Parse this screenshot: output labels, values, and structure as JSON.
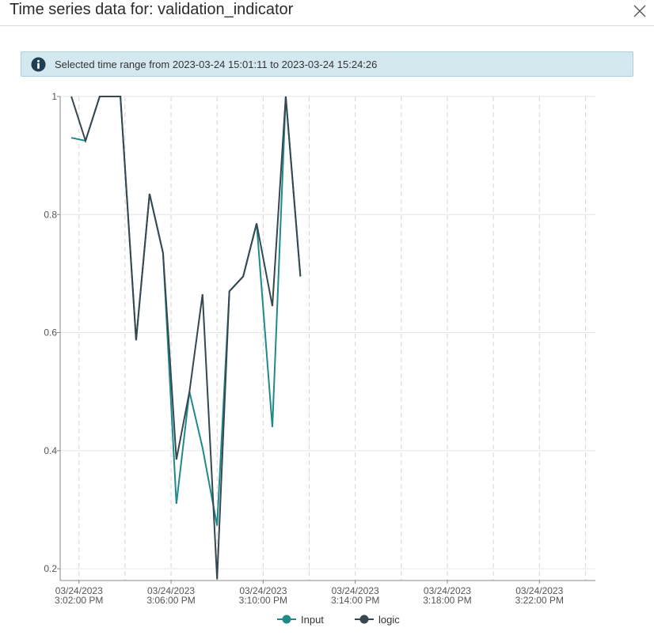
{
  "dialog": {
    "title": "Time series data for: validation_indicator",
    "close_icon": "close-icon"
  },
  "info_banner": {
    "icon": "info-icon",
    "text": "Selected time range from 2023-03-24 15:01:11 to 2023-03-24 15:24:26"
  },
  "chart_data": {
    "type": "line",
    "x_axis": {
      "ticks": [
        {
          "value": "2023-03-24T15:02:00",
          "line1": "03/24/2023",
          "line2": "3:02:00 PM"
        },
        {
          "value": "2023-03-24T15:06:00",
          "line1": "03/24/2023",
          "line2": "3:06:00 PM"
        },
        {
          "value": "2023-03-24T15:10:00",
          "line1": "03/24/2023",
          "line2": "3:10:00 PM"
        },
        {
          "value": "2023-03-24T15:14:00",
          "line1": "03/24/2023",
          "line2": "3:14:00 PM"
        },
        {
          "value": "2023-03-24T15:18:00",
          "line1": "03/24/2023",
          "line2": "3:18:00 PM"
        },
        {
          "value": "2023-03-24T15:22:00",
          "line1": "03/24/2023",
          "line2": "3:22:00 PM"
        }
      ],
      "range": [
        "2023-03-24T15:01:11",
        "2023-03-24T15:24:26"
      ]
    },
    "y_axis": {
      "ticks": [
        {
          "value": 1,
          "label": "1"
        },
        {
          "value": 0.8,
          "label": "0.8"
        },
        {
          "value": 0.6,
          "label": "0.6"
        },
        {
          "value": 0.4,
          "label": "0.4"
        },
        {
          "value": 0.2,
          "label": "0.2"
        }
      ],
      "range": [
        0.18,
        1.0
      ]
    },
    "grid": true,
    "legend_position": "bottom-center",
    "series": [
      {
        "name": "Input",
        "color": "#1f8a8a",
        "points": [
          [
            "2023-03-24T15:01:40",
            0.93
          ],
          [
            "2023-03-24T15:02:17",
            0.925
          ],
          [
            "2023-03-24T15:02:54",
            1.0
          ],
          [
            "2023-03-24T15:03:48",
            1.0
          ],
          [
            "2023-03-24T15:04:29",
            0.587
          ],
          [
            "2023-03-24T15:05:04",
            0.835
          ],
          [
            "2023-03-24T15:05:39",
            0.735
          ],
          [
            "2023-03-24T15:06:14",
            0.31
          ],
          [
            "2023-03-24T15:06:48",
            0.5
          ],
          [
            "2023-03-24T15:07:22",
            0.405
          ],
          [
            "2023-03-24T15:08:00",
            0.273
          ],
          [
            "2023-03-24T15:08:32",
            0.67
          ],
          [
            "2023-03-24T15:09:08",
            0.695
          ],
          [
            "2023-03-24T15:09:43",
            0.785
          ],
          [
            "2023-03-24T15:10:24",
            0.44
          ],
          [
            "2023-03-24T15:10:59",
            1.0
          ],
          [
            "2023-03-24T15:11:37",
            0.695
          ]
        ]
      },
      {
        "name": "logic",
        "color": "#37474f",
        "points": [
          [
            "2023-03-24T15:01:40",
            1.0
          ],
          [
            "2023-03-24T15:02:17",
            0.925
          ],
          [
            "2023-03-24T15:02:54",
            1.0
          ],
          [
            "2023-03-24T15:03:48",
            1.0
          ],
          [
            "2023-03-24T15:04:29",
            0.587
          ],
          [
            "2023-03-24T15:05:04",
            0.835
          ],
          [
            "2023-03-24T15:05:39",
            0.735
          ],
          [
            "2023-03-24T15:06:14",
            0.385
          ],
          [
            "2023-03-24T15:06:48",
            0.5
          ],
          [
            "2023-03-24T15:07:22",
            0.665
          ],
          [
            "2023-03-24T15:08:00",
            0.182
          ],
          [
            "2023-03-24T15:08:32",
            0.67
          ],
          [
            "2023-03-24T15:09:08",
            0.695
          ],
          [
            "2023-03-24T15:09:43",
            0.785
          ],
          [
            "2023-03-24T15:10:24",
            0.645
          ],
          [
            "2023-03-24T15:10:59",
            1.0
          ],
          [
            "2023-03-24T15:11:37",
            0.695
          ]
        ]
      }
    ]
  }
}
